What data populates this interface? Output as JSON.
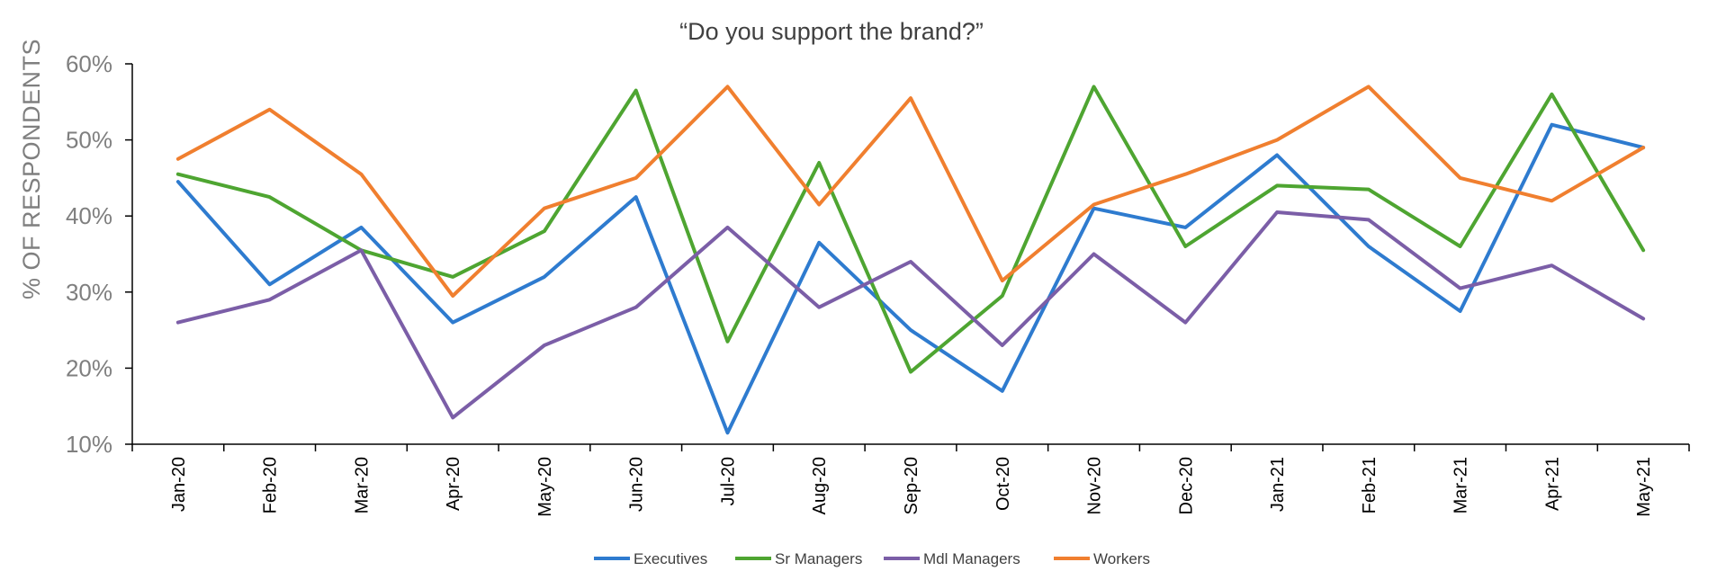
{
  "chart_data": {
    "type": "line",
    "title": "“Do you support the brand?”",
    "ylabel": "% OF RESPONDENTS",
    "xlabel": "",
    "ylim": [
      10,
      60
    ],
    "yticks": [
      10,
      20,
      30,
      40,
      50,
      60
    ],
    "ytick_labels": [
      "10%",
      "20%",
      "30%",
      "40%",
      "50%",
      "60%"
    ],
    "categories": [
      "Jan-20",
      "Feb-20",
      "Mar-20",
      "Apr-20",
      "May-20",
      "Jun-20",
      "Jul-20",
      "Aug-20",
      "Sep-20",
      "Oct-20",
      "Nov-20",
      "Dec-20",
      "Jan-21",
      "Feb-21",
      "Mar-21",
      "Apr-21",
      "May-21"
    ],
    "grid": false,
    "legend_position": "bottom",
    "series": [
      {
        "name": "Executives",
        "color": "#2e7bcf",
        "values": [
          44.5,
          31,
          38.5,
          26,
          32,
          42.5,
          11.5,
          36.5,
          25,
          17,
          41,
          38.5,
          48,
          36,
          27.5,
          52,
          49
        ]
      },
      {
        "name": "Sr Managers",
        "color": "#4ea531",
        "values": [
          45.5,
          42.5,
          35.5,
          32,
          38,
          56.5,
          23.5,
          47,
          19.5,
          29.5,
          57,
          36,
          44,
          43.5,
          36,
          56,
          35.5
        ]
      },
      {
        "name": "Mdl Managers",
        "color": "#7b5ea7",
        "values": [
          26,
          29,
          35.5,
          13.5,
          23,
          28,
          38.5,
          28,
          34,
          23,
          35,
          26,
          40.5,
          39.5,
          30.5,
          33.5,
          26.5
        ]
      },
      {
        "name": "Workers",
        "color": "#f07f2f",
        "values": [
          47.5,
          54,
          45.5,
          29.5,
          41,
          45,
          57,
          41.5,
          55.5,
          31.5,
          41.5,
          45.5,
          50,
          57,
          45,
          42,
          49
        ]
      }
    ]
  }
}
